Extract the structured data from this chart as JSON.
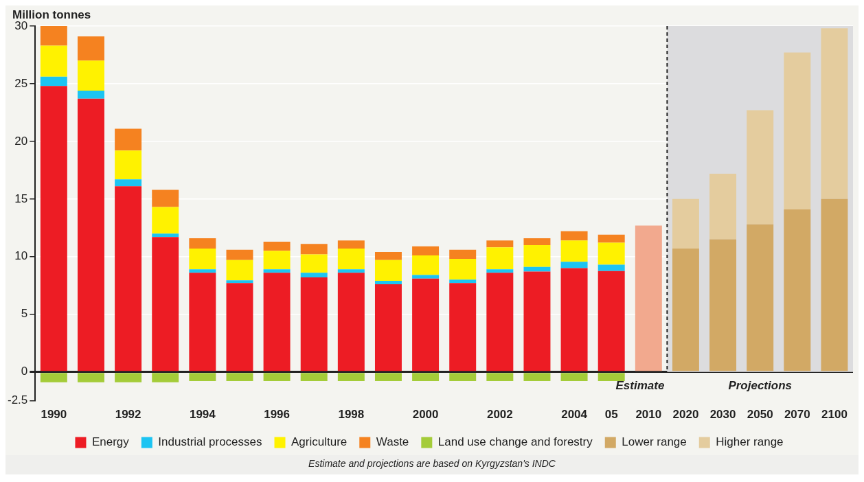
{
  "chart_data": {
    "type": "bar",
    "stacked": true,
    "ylabel": "Million tonnes",
    "categories": [
      "1990",
      null,
      "1992",
      null,
      "1994",
      null,
      "1996",
      null,
      "1998",
      null,
      "2000",
      null,
      "2002",
      null,
      "2004",
      "05",
      "2010",
      "2020",
      "2030",
      "2050",
      "2070",
      "2100"
    ],
    "series": [
      {
        "name": "Energy",
        "color": "#ed1c24",
        "values": [
          24.8,
          23.7,
          16.1,
          11.7,
          8.6,
          7.7,
          8.6,
          8.2,
          8.6,
          7.6,
          8.1,
          7.7,
          8.6,
          8.7,
          9.0,
          8.75,
          null,
          null,
          null,
          null,
          null,
          null
        ]
      },
      {
        "name": "Industrial processes",
        "color": "#1cc4f2",
        "values": [
          0.8,
          0.7,
          0.6,
          0.3,
          0.3,
          0.25,
          0.3,
          0.4,
          0.3,
          0.3,
          0.3,
          0.3,
          0.3,
          0.4,
          0.55,
          0.55,
          null,
          null,
          null,
          null,
          null,
          null
        ]
      },
      {
        "name": "Agriculture",
        "color": "#fff200",
        "values": [
          2.7,
          2.6,
          2.5,
          2.3,
          1.8,
          1.75,
          1.6,
          1.6,
          1.8,
          1.8,
          1.7,
          1.8,
          1.9,
          1.9,
          1.85,
          1.9,
          null,
          null,
          null,
          null,
          null,
          null
        ]
      },
      {
        "name": "Waste",
        "color": "#f58220",
        "values": [
          1.7,
          2.1,
          1.9,
          1.5,
          0.9,
          0.9,
          0.8,
          0.9,
          0.7,
          0.7,
          0.8,
          0.8,
          0.6,
          0.6,
          0.8,
          0.7,
          null,
          null,
          null,
          null,
          null,
          null
        ]
      },
      {
        "name": "Land use change and forestry",
        "color": "#a4cc39",
        "values": [
          -0.9,
          -0.9,
          -0.9,
          -0.9,
          -0.8,
          -0.8,
          -0.8,
          -0.8,
          -0.8,
          -0.8,
          -0.8,
          -0.8,
          -0.8,
          -0.8,
          -0.8,
          -0.8,
          null,
          null,
          null,
          null,
          null,
          null
        ]
      },
      {
        "color": "#f2a98e",
        "values": [
          null,
          null,
          null,
          null,
          null,
          null,
          null,
          null,
          null,
          null,
          null,
          null,
          null,
          null,
          null,
          null,
          12.7,
          null,
          null,
          null,
          null,
          null
        ]
      },
      {
        "name": "Lower range",
        "color": "#d2a965",
        "values": [
          null,
          null,
          null,
          null,
          null,
          null,
          null,
          null,
          null,
          null,
          null,
          null,
          null,
          null,
          null,
          null,
          null,
          10.7,
          11.5,
          12.8,
          14.1,
          15.0
        ]
      },
      {
        "name": "Higher range",
        "color": "#e4cc9e",
        "values": [
          null,
          null,
          null,
          null,
          null,
          null,
          null,
          null,
          null,
          null,
          null,
          null,
          null,
          null,
          null,
          null,
          null,
          4.3,
          5.7,
          9.9,
          13.6,
          14.8
        ]
      }
    ],
    "ylim": [
      -2.5,
      30
    ],
    "yticks": [
      -2.5,
      0,
      5,
      10,
      15,
      20,
      25,
      30
    ],
    "grid": "y",
    "legend": "bottom",
    "bands": [
      {
        "axis": "x",
        "from": "2020",
        "to": "2100",
        "label": "Projections",
        "color": "#dcdcde"
      }
    ],
    "ref_lines": [
      {
        "axis": "x",
        "value": "2020",
        "color": "#222222",
        "line_style": "dashed"
      }
    ],
    "annotations": [
      "Estimate",
      "Estimate and projections are based on Kyrgyzstan's INDC"
    ]
  }
}
